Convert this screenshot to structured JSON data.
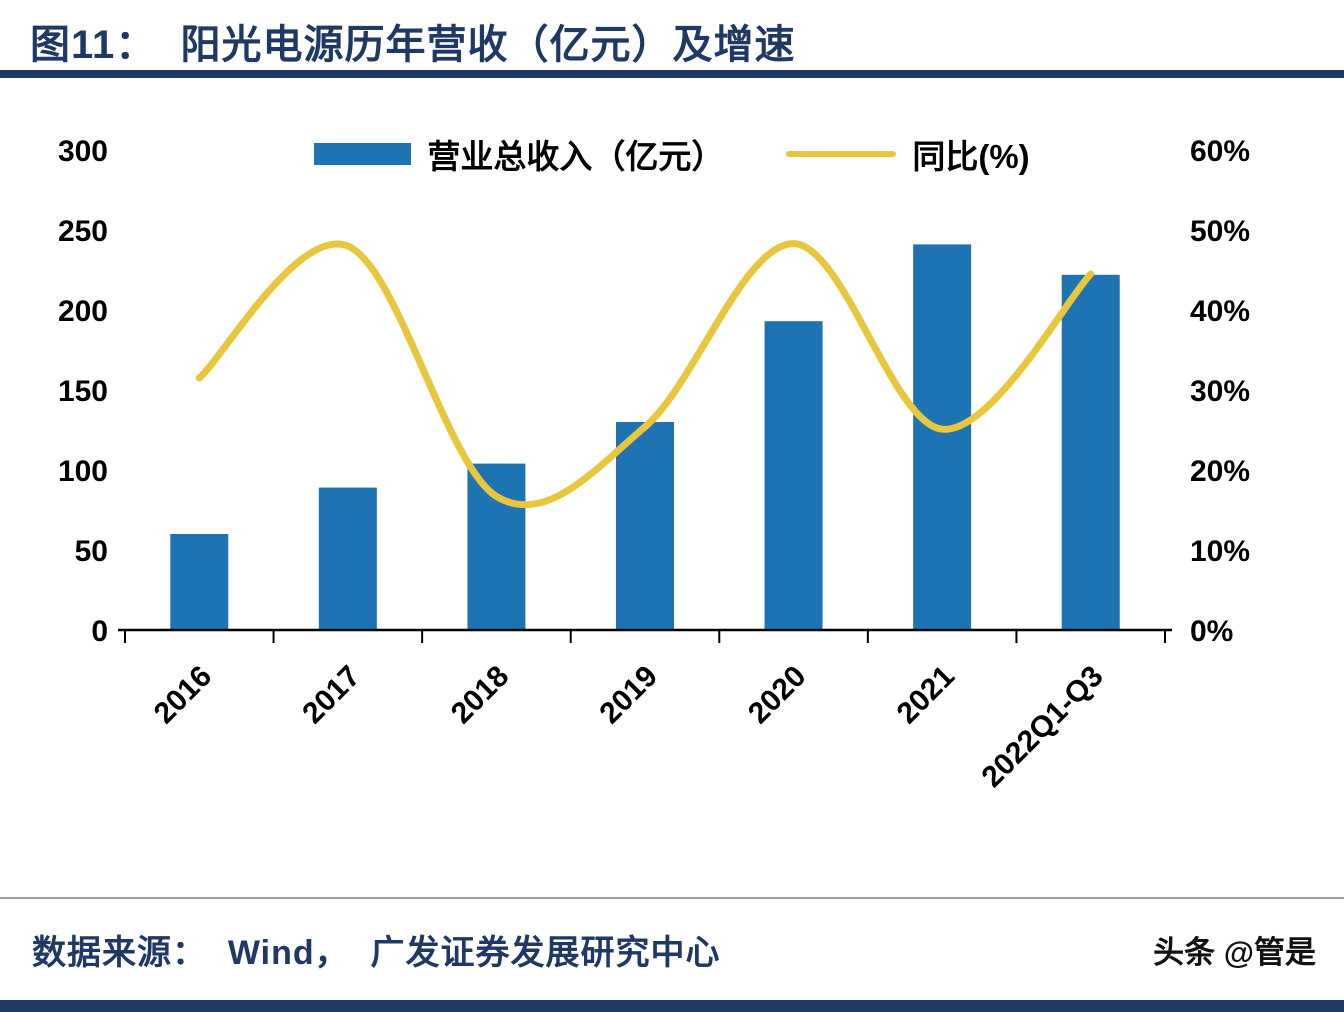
{
  "header": {
    "title": "图11：  阳光电源历年营收（亿元）及增速"
  },
  "legend": {
    "bar_label": "营业总收入（亿元）",
    "line_label": "同比(%)"
  },
  "footer": {
    "source": "数据来源：  Wind，  广发证券发展研究中心",
    "watermark": "头条 @管是"
  },
  "colors": {
    "bar": "#1e73b2",
    "line": "#e8c73e",
    "navy": "#1f3864",
    "axis_text": "#000000",
    "separator_gray": "#a0a0a0"
  },
  "chart_data": {
    "type": "bar",
    "title": "阳光电源历年营收（亿元）及增速",
    "categories": [
      "2016",
      "2017",
      "2018",
      "2019",
      "2020",
      "2021",
      "2022Q1-Q3"
    ],
    "series": [
      {
        "name": "营业总收入（亿元）",
        "type": "bar",
        "axis": "left",
        "values": [
          60,
          89,
          104,
          130,
          193,
          241,
          222
        ]
      },
      {
        "name": "同比(%)",
        "type": "line",
        "axis": "right",
        "values": [
          31.5,
          48.0,
          16.7,
          25.4,
          48.3,
          25.1,
          44.5
        ]
      }
    ],
    "left_axis": {
      "min": 0,
      "max": 300,
      "step": 50
    },
    "right_axis": {
      "min": 0,
      "max": 60,
      "step": 10,
      "suffix": "%"
    },
    "grid": false,
    "legend_position": "top"
  }
}
